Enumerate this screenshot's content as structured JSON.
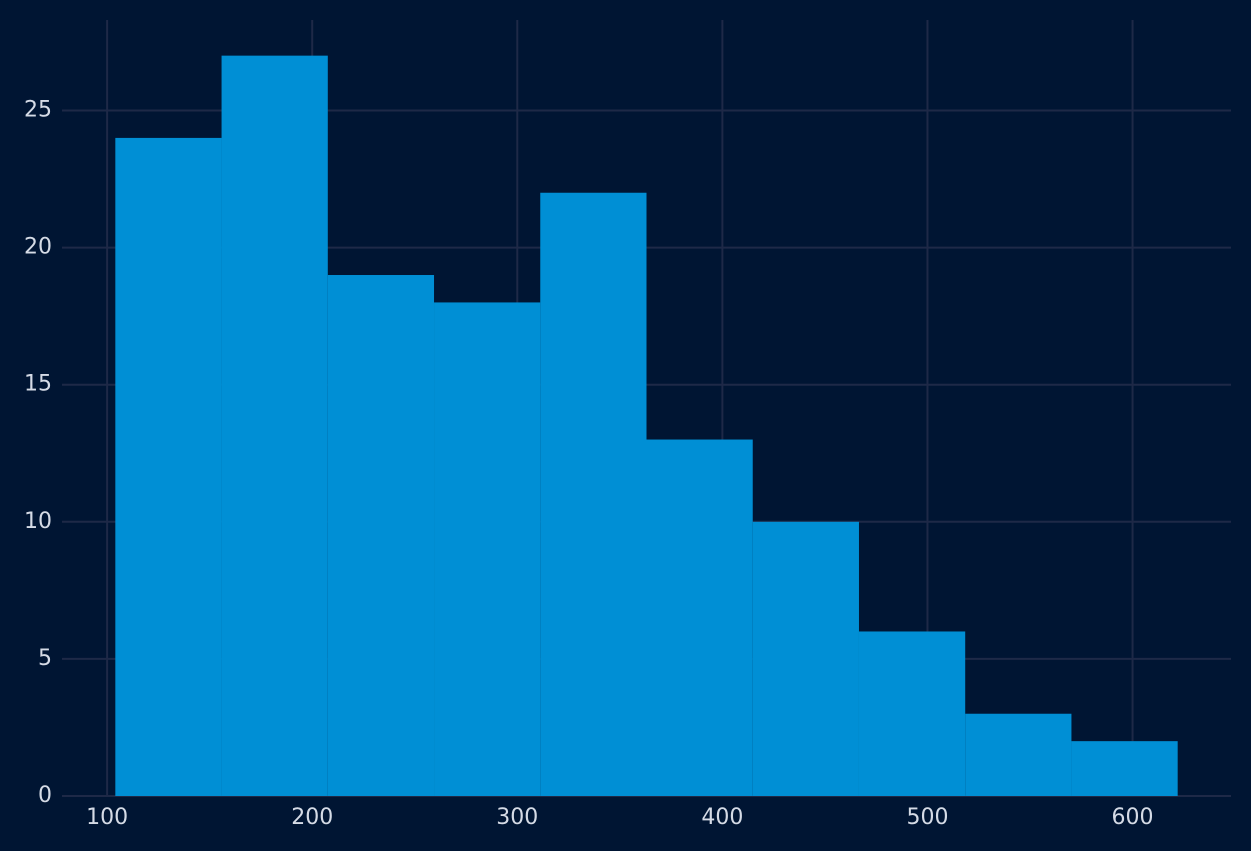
{
  "chart_data": {
    "type": "histogram",
    "bins": [
      104,
      155.8,
      207.6,
      259.4,
      311.2,
      363,
      414.8,
      466.6,
      518.4,
      570.2,
      622
    ],
    "counts": [
      24,
      27,
      19,
      18,
      22,
      13,
      10,
      6,
      3,
      2
    ],
    "color": "#008fd5",
    "xlim": [
      78,
      648
    ],
    "xticks": [
      100,
      200,
      300,
      400,
      500,
      600
    ],
    "ylim": [
      0,
      28.3
    ],
    "yticks": [
      0,
      5,
      10,
      15,
      20,
      25
    ],
    "grid": true
  }
}
